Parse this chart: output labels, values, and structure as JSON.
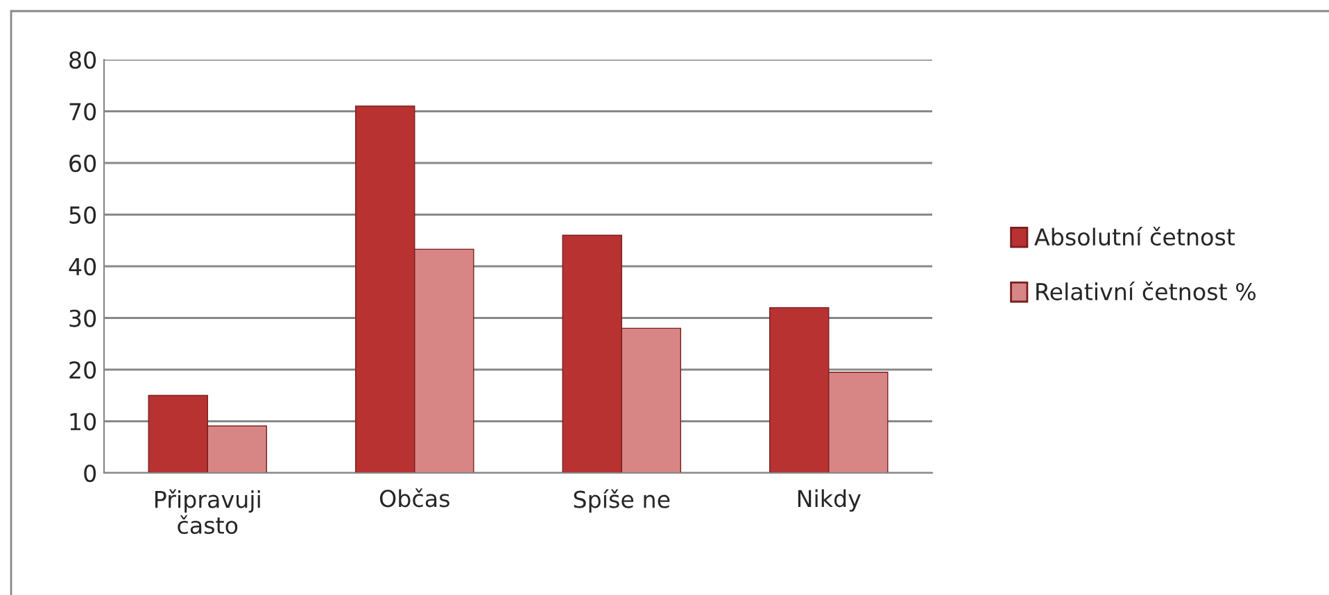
{
  "chart_data": {
    "type": "bar",
    "categories": [
      "Připravuji\nčasto",
      "Občas",
      "Spíše ne",
      "Nikdy"
    ],
    "series": [
      {
        "name": "Absolutní četnost",
        "color": "#b83232",
        "values": [
          15,
          71,
          46,
          32
        ]
      },
      {
        "name": "Relativní četnost %",
        "color": "#d88585",
        "values": [
          9.1,
          43.3,
          28,
          19.5
        ]
      }
    ],
    "ylim": [
      0,
      80
    ],
    "yticks": [
      0,
      10,
      20,
      30,
      40,
      50,
      60,
      70,
      80
    ],
    "grid": "y",
    "legend": "right"
  }
}
